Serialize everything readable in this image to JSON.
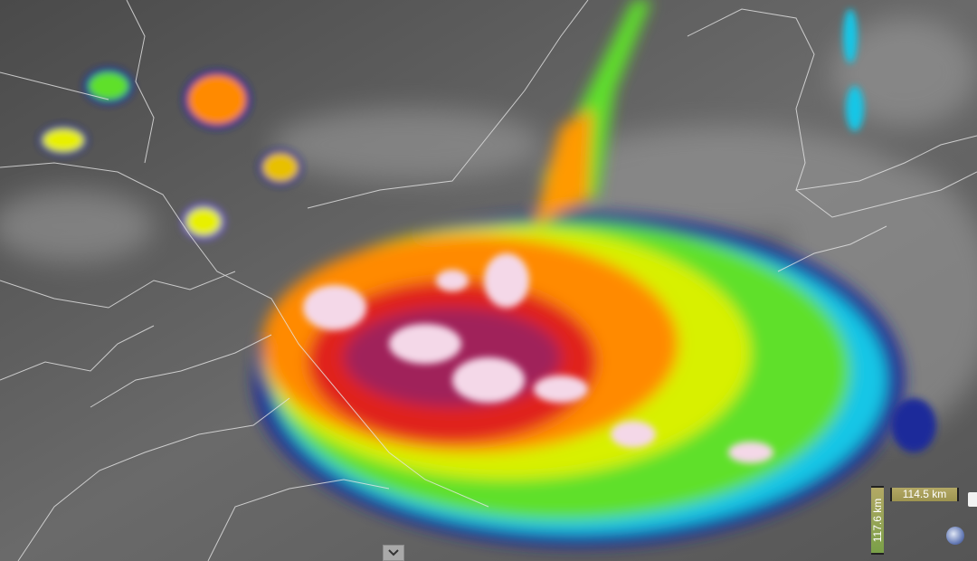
{
  "map": {
    "layer": "satellite infrared enhanced cloud-top imagery",
    "colors": {
      "background": "#5a5a5a",
      "borders": "#e6e6e6",
      "cold_blue": "#1a2a9a",
      "cyan": "#19c6e6",
      "green": "#5fe02a",
      "yellow": "#e8f000",
      "orange": "#ff8a00",
      "red": "#e0201a",
      "magenta": "#a0205a",
      "overshoot": "#f4d8e8"
    }
  },
  "scale": {
    "horizontal_label": "114.5 km",
    "vertical_label": "117.6 km"
  },
  "controls": {
    "expand_icon": "chevron-down-icon",
    "globe_icon": "globe-icon"
  }
}
